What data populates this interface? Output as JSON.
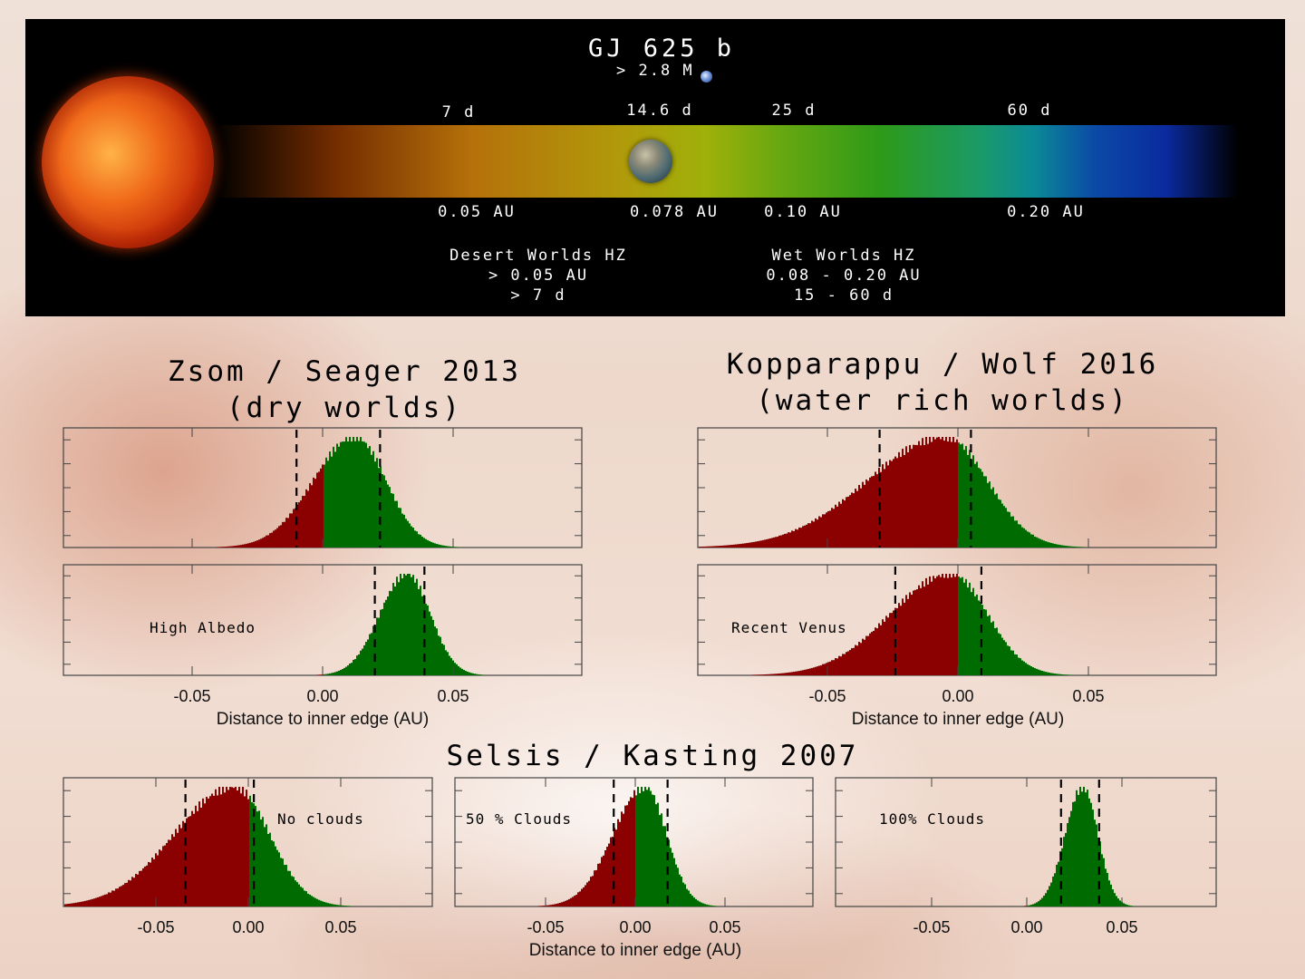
{
  "banner": {
    "planet_name": "GJ 625 b",
    "planet_mass": "> 2.8 M",
    "periods": [
      "7 d",
      "14.6 d",
      "25 d",
      "60 d"
    ],
    "distances": [
      "0.05 AU",
      "0.078 AU",
      "0.10 AU",
      "0.20 AU"
    ],
    "desert_hz": {
      "title": "Desert Worlds HZ",
      "range": "> 0.05 AU",
      "period": "> 7 d"
    },
    "wet_hz": {
      "title": "Wet Worlds HZ",
      "range": "0.08 - 0.20 AU",
      "period": "15 - 60 d"
    }
  },
  "headings": {
    "zsom_line1": "Zsom / Seager 2013",
    "zsom_line2": "(dry worlds)",
    "kopp_line1": "Kopparappu / Wolf 2016",
    "kopp_line2": "(water rich worlds)",
    "selsis": "Selsis / Kasting 2007"
  },
  "colors": {
    "inside_hz": "#006b00",
    "outside_hz": "#8b0000",
    "banner_bg": "#000000"
  },
  "chart_data": [
    {
      "type": "bar",
      "id": "zsom_default",
      "label": "",
      "mean": 0.012,
      "sigma": 0.012,
      "skew": -0.6,
      "dashed": [
        -0.01,
        0.022
      ],
      "xlim": [
        -0.1,
        0.1
      ],
      "xticks": [
        "-0.05",
        "0.00",
        "0.05"
      ],
      "xlabel": "Distance to inner edge (AU)"
    },
    {
      "type": "bar",
      "id": "zsom_high_albedo",
      "label": "High Albedo",
      "mean": 0.032,
      "sigma": 0.009,
      "skew": -0.3,
      "dashed": [
        0.02,
        0.039
      ],
      "xlim": [
        -0.1,
        0.1
      ],
      "xticks": [
        "-0.05",
        "0.00",
        "0.05"
      ],
      "xlabel": "Distance to inner edge (AU)"
    },
    {
      "type": "bar",
      "id": "kopp_default",
      "label": "",
      "mean": -0.005,
      "sigma": 0.016,
      "skew": -1.6,
      "dashed": [
        -0.03,
        0.005
      ],
      "xlim": [
        -0.1,
        0.1
      ],
      "xticks": [
        "-0.05",
        "0.00",
        "0.05"
      ],
      "xlabel": "Distance to inner edge (AU)"
    },
    {
      "type": "bar",
      "id": "kopp_recent_venus",
      "label": "Recent Venus",
      "mean": -0.003,
      "sigma": 0.014,
      "skew": -1.2,
      "dashed": [
        -0.024,
        0.009
      ],
      "xlim": [
        -0.1,
        0.1
      ],
      "xticks": [
        "-0.05",
        "0.00",
        "0.05"
      ],
      "xlabel": "Distance to inner edge (AU)"
    },
    {
      "type": "bar",
      "id": "selsis_no_clouds",
      "label": "No clouds",
      "mean": -0.008,
      "sigma": 0.019,
      "skew": -1.3,
      "dashed": [
        -0.034,
        0.003
      ],
      "xlim": [
        -0.1,
        0.1
      ],
      "xticks": [
        "-0.05",
        "0.00",
        "0.05"
      ],
      "xlabel": ""
    },
    {
      "type": "bar",
      "id": "selsis_50_clouds",
      "label": "50 % Clouds",
      "mean": 0.005,
      "sigma": 0.012,
      "skew": -0.9,
      "dashed": [
        -0.012,
        0.018
      ],
      "xlim": [
        -0.1,
        0.1
      ],
      "xticks": [
        "-0.05",
        "0.00",
        "0.05"
      ],
      "xlabel": "Distance to inner edge (AU)"
    },
    {
      "type": "bar",
      "id": "selsis_100_clouds",
      "label": "100% Clouds",
      "mean": 0.029,
      "sigma": 0.008,
      "skew": -0.3,
      "dashed": [
        0.018,
        0.038
      ],
      "xlim": [
        -0.1,
        0.1
      ],
      "xticks": [
        "-0.05",
        "0.00",
        "0.05"
      ],
      "xlabel": ""
    }
  ]
}
